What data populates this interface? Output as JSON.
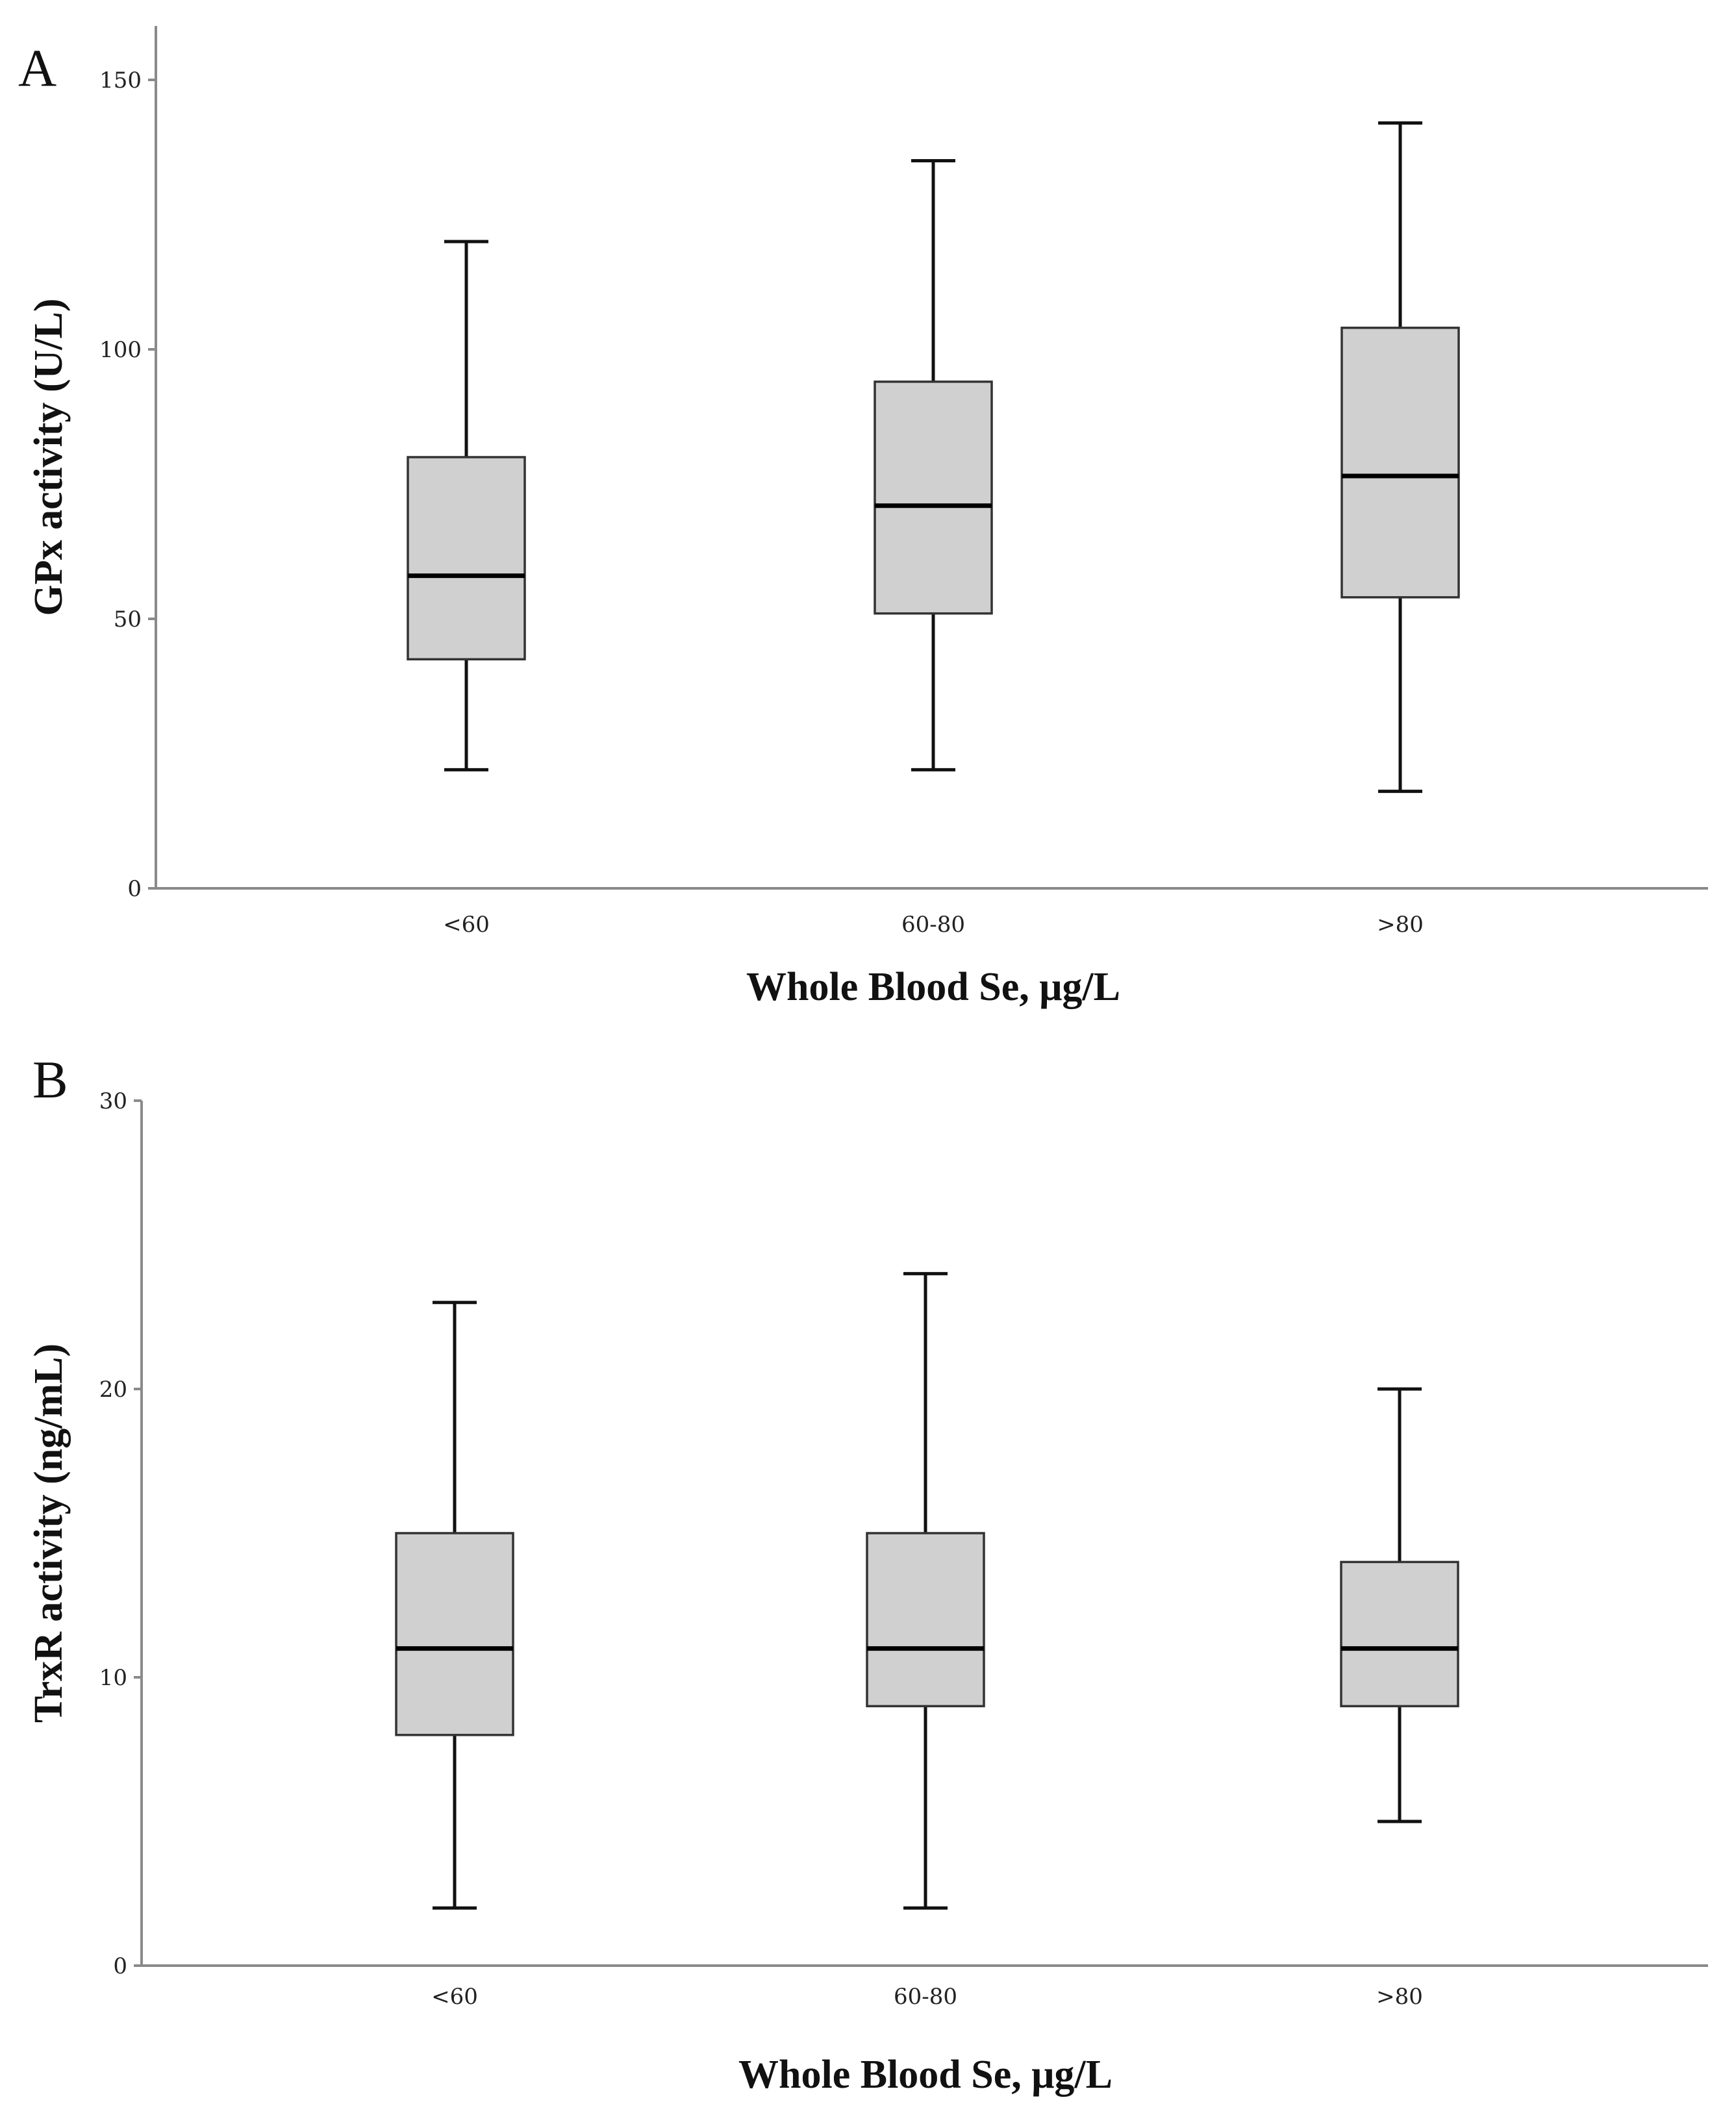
{
  "chart_data": [
    {
      "type": "box",
      "panel_label": "A",
      "xlabel": "Whole Blood Se, μg/L",
      "ylabel": "GPx activity (U/L)",
      "ylim": [
        0,
        160
      ],
      "yticks": [
        0,
        50,
        100,
        150
      ],
      "categories": [
        "<60",
        "60-80",
        ">80"
      ],
      "boxes": [
        {
          "category": "<60",
          "min": 22,
          "q1": 42.5,
          "median": 58,
          "q3": 80,
          "max": 120
        },
        {
          "category": "60-80",
          "min": 22,
          "q1": 51,
          "median": 71,
          "q3": 94,
          "max": 135
        },
        {
          "category": ">80",
          "min": 18,
          "q1": 54,
          "median": 76.5,
          "q3": 104,
          "max": 142
        }
      ]
    },
    {
      "type": "box",
      "panel_label": "B",
      "xlabel": "Whole Blood Se, μg/L",
      "ylabel": "TrxR activity (ng/mL)",
      "ylim": [
        0,
        30
      ],
      "yticks": [
        0,
        10,
        20,
        30
      ],
      "categories": [
        "<60",
        "60-80",
        ">80"
      ],
      "boxes": [
        {
          "category": "<60",
          "min": 2,
          "q1": 8,
          "median": 11,
          "q3": 15,
          "max": 23
        },
        {
          "category": "60-80",
          "min": 2,
          "q1": 9,
          "median": 11,
          "q3": 15,
          "max": 24
        },
        {
          "category": ">80",
          "min": 5,
          "q1": 9,
          "median": 11,
          "q3": 14,
          "max": 20
        }
      ]
    }
  ]
}
